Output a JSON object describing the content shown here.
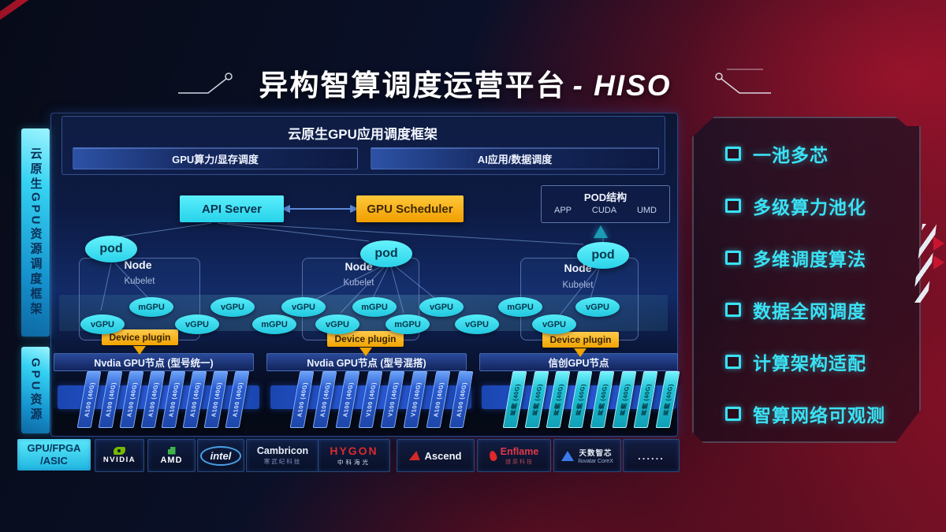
{
  "title": {
    "zh": "异构智算调度运营平台",
    "en": "- HISO"
  },
  "left_rails": [
    {
      "label": "云原生GPU资源调度框架"
    },
    {
      "label": "GPU资源"
    }
  ],
  "app_framework": {
    "title": "云原生GPU应用调度框架",
    "bars": [
      {
        "label": "GPU算力/显存调度"
      },
      {
        "label": "AI应用/数据调度"
      }
    ]
  },
  "control": {
    "api_server": "API Server",
    "gpu_scheduler": "GPU Scheduler"
  },
  "pod_struct": {
    "title": "POD结构",
    "items": [
      "APP",
      "CUDA",
      "UMD"
    ]
  },
  "nodes": [
    {
      "pod": "pod",
      "name": "Node",
      "agent": "Kubelet",
      "plugin": "Device plugin"
    },
    {
      "pod": "pod",
      "name": "Node",
      "agent": "Kubelet",
      "plugin": "Device plugin"
    },
    {
      "pod": "pod",
      "name": "Node",
      "agent": "Kubelet",
      "plugin": "Device plugin"
    }
  ],
  "gpu_units": [
    "vGPU",
    "mGPU",
    "vGPU",
    "vGPU",
    "mGPU",
    "vGPU",
    "vGPU",
    "mGPU",
    "mGPU",
    "vGPU",
    "vGPU",
    "mGPU",
    "vGPU",
    "vGPU"
  ],
  "node_groups": [
    {
      "label": "Nvdia GPU节点 (型号统一)",
      "cards": [
        "A100 (40G)",
        "A100 (40G)",
        "A100 (40G)",
        "A100 (40G)",
        "A100 (40G)",
        "A100 (40G)",
        "A100 (40G)",
        "A100 (40G)"
      ]
    },
    {
      "label": "Nvdia GPU节点 (型号混搭)",
      "cards": [
        "A100 (40G)",
        "A100 (40G)",
        "A100 (40G)",
        "V100 (40G)",
        "V100 (40G)",
        "V100 (40G)",
        "A100 (40G)",
        "A100 (40G)"
      ]
    },
    {
      "label": "信创GPU节点",
      "cards": [
        "昇腾 (40G)",
        "昇腾 (40G)",
        "昇腾 (40G)",
        "昇腾 (40G)",
        "昇腾 (40G)",
        "昇腾 (40G)",
        "昇腾 (40G)",
        "昇腾 (40G)"
      ]
    }
  ],
  "vendors": [
    {
      "id": "chip",
      "line1": "GPU/FPGA",
      "line2": "/ASIC"
    },
    {
      "id": "nvidia",
      "text": "NVIDIA"
    },
    {
      "id": "amd",
      "text": "AMD"
    },
    {
      "id": "intel",
      "text": "intel"
    },
    {
      "id": "cambricon",
      "text": "Cambricon",
      "sub": "寒武纪科技"
    },
    {
      "id": "hygon",
      "text": "HYGON",
      "sub": "中科海光"
    },
    {
      "id": "ascend",
      "text": "Ascend"
    },
    {
      "id": "enflame",
      "text": "Enflame",
      "sub": "燧原科技"
    },
    {
      "id": "iluvatar",
      "text": "天数智芯",
      "sub": "Iluvatar CoreX"
    },
    {
      "id": "more",
      "text": "......"
    }
  ],
  "features": [
    "一池多芯",
    "多级算力池化",
    "多维调度算法",
    "数据全网调度",
    "计算架构适配",
    "智算网络可观测"
  ],
  "colors": {
    "accent_cyan": "#35e1f2",
    "accent_orange": "#f0a400",
    "card_blue": "#2a5cd0",
    "bg_red": "#6b1024",
    "feature_text": "#3ae2f4"
  }
}
